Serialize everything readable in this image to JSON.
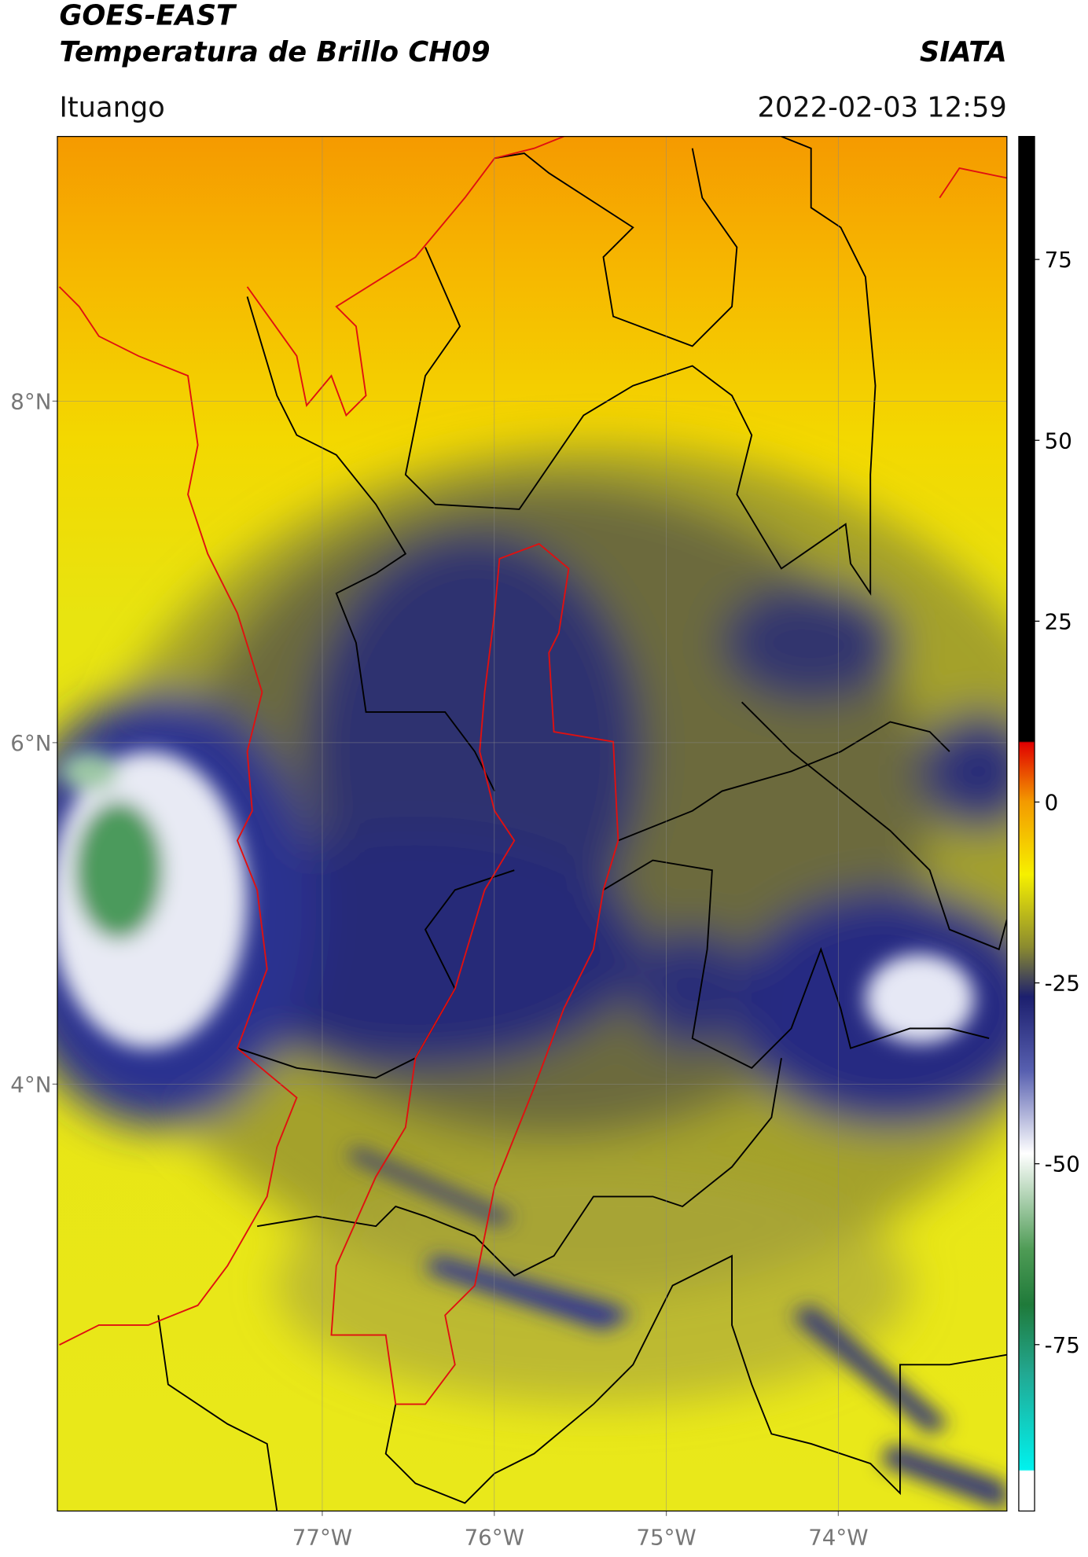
{
  "header": {
    "title": "GOES-EAST",
    "subtitle": "Temperatura de Brillo CH09",
    "source": "SIATA",
    "location": "Ituango",
    "datetime": "2022-02-03 12:59"
  },
  "map": {
    "lat_range": [
      1.5,
      9.55
    ],
    "lon_range": [
      -78.54,
      -73.02
    ],
    "lat_ticks": [
      {
        "value": 8,
        "label": "8°N"
      },
      {
        "value": 6,
        "label": "6°N"
      },
      {
        "value": 4,
        "label": "4°N"
      }
    ],
    "lon_ticks": [
      {
        "value": -77,
        "label": "77°W"
      },
      {
        "value": -76,
        "label": "76°W"
      },
      {
        "value": -75,
        "label": "75°W"
      },
      {
        "value": -74,
        "label": "74°W"
      }
    ]
  },
  "colorbar": {
    "lim": [
      -98,
      92
    ],
    "ticks": [
      75,
      50,
      25,
      0,
      -25,
      -50,
      -75
    ]
  }
}
